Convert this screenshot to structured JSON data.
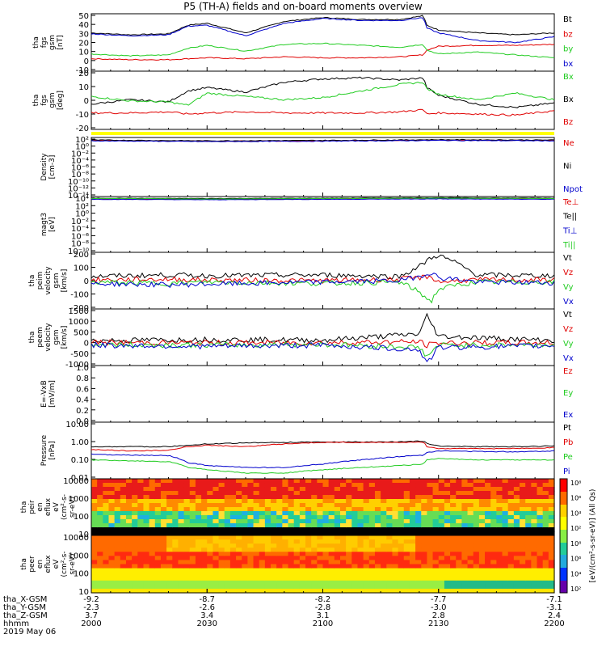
{
  "title": "P5 (TH-A) fields and on-board moments overview",
  "colors": {
    "black": "#000000",
    "red": "#e00000",
    "green": "#22cc22",
    "blue": "#0000cc",
    "yellow": "#ffff00"
  },
  "chart_data": [
    {
      "type": "line",
      "ylabel": [
        "tha",
        "fgs",
        "gsm",
        "[nT]"
      ],
      "yticks": [
        "50",
        "40",
        "30",
        "20",
        "10",
        "0",
        "-10"
      ],
      "ylim": [
        -10,
        50
      ],
      "legend": [
        {
          "name": "Bt",
          "color": "black"
        },
        {
          "name": "bz",
          "color": "red"
        },
        {
          "name": "by",
          "color": "green"
        },
        {
          "name": "bx",
          "color": "blue"
        }
      ],
      "x": [
        2000,
        2010,
        2020,
        2025,
        2030,
        2040,
        2050,
        2100,
        2110,
        2120,
        2126,
        2127,
        2130,
        2140,
        2150,
        2200
      ],
      "series": [
        {
          "name": "Bt",
          "color": "black",
          "values": [
            30,
            28,
            29,
            38,
            40,
            30,
            42,
            46,
            44,
            44,
            48,
            38,
            33,
            30,
            28,
            30
          ]
        },
        {
          "name": "bz",
          "color": "red",
          "values": [
            3,
            2,
            2,
            3,
            4,
            3,
            5,
            4,
            4,
            5,
            7,
            12,
            16,
            17,
            17,
            18
          ]
        },
        {
          "name": "by",
          "color": "green",
          "values": [
            8,
            6,
            7,
            14,
            17,
            11,
            18,
            19,
            17,
            15,
            18,
            12,
            8,
            10,
            7,
            4
          ]
        },
        {
          "name": "bx",
          "color": "blue",
          "values": [
            29,
            27,
            28,
            37,
            38,
            27,
            40,
            45,
            43,
            43,
            46,
            35,
            30,
            22,
            20,
            26
          ]
        }
      ]
    },
    {
      "type": "line",
      "ylabel": [
        "tha",
        "fgs",
        "gsm",
        "[deg]"
      ],
      "yticks": [
        "20",
        "10",
        "0",
        "-10",
        "-20"
      ],
      "ylim": [
        -25,
        28
      ],
      "legend": [
        {
          "name": "Bx",
          "color": "green"
        },
        {
          "name": "Bx",
          "color": "black"
        },
        {
          "name": "Bz",
          "color": "red"
        }
      ],
      "x": [
        2000,
        2010,
        2020,
        2025,
        2030,
        2040,
        2050,
        2100,
        2110,
        2120,
        2126,
        2127,
        2130,
        2140,
        2150,
        2200
      ],
      "series": [
        {
          "name": "Bx",
          "color": "black",
          "values": [
            -2,
            2,
            0,
            10,
            13,
            9,
            18,
            21,
            22,
            20,
            22,
            13,
            6,
            -2,
            -5,
            -1
          ]
        },
        {
          "name": "Bx",
          "color": "green",
          "values": [
            5,
            1,
            0,
            -3,
            8,
            5,
            2,
            4,
            10,
            16,
            18,
            12,
            7,
            2,
            8,
            2
          ]
        },
        {
          "name": "Bz",
          "color": "red",
          "values": [
            -10,
            -10,
            -9,
            -11,
            -10,
            -9,
            -10,
            -10,
            -10,
            -9,
            -7,
            -11,
            -10,
            -11,
            -12,
            -8
          ]
        }
      ]
    },
    {
      "type": "line",
      "ylabel": [
        "Density",
        "[cm-3]"
      ],
      "yticks": [
        "10²",
        "10⁰",
        "10⁻²",
        "10⁻⁴",
        "10⁻⁶",
        "10⁻⁸",
        "10⁻¹⁰",
        "10⁻¹²",
        "10⁻¹⁴"
      ],
      "ylim": [
        -14,
        2
      ],
      "legend": [
        {
          "name": "Ne",
          "color": "red"
        },
        {
          "name": "Ni",
          "color": "black"
        },
        {
          "name": "Npot",
          "color": "blue"
        }
      ],
      "x": [
        2000,
        2030,
        2100,
        2130,
        2200
      ],
      "series": [
        {
          "name": "Ne",
          "color": "red",
          "values": [
            1.2,
            1.0,
            1.1,
            1.3,
            1.2
          ]
        },
        {
          "name": "Ni",
          "color": "black",
          "values": [
            1.3,
            1.1,
            1.2,
            1.4,
            1.3
          ]
        },
        {
          "name": "Npot",
          "color": "blue",
          "values": [
            1.1,
            0.9,
            1.0,
            1.2,
            1.1
          ]
        }
      ]
    },
    {
      "type": "line",
      "ylabel": [
        "magt3",
        "[eV]"
      ],
      "yticks": [
        "10⁴",
        "10²",
        "10⁰",
        "10⁻²",
        "10⁻⁴",
        "10⁻⁶",
        "10⁻⁸",
        "10⁻¹⁰"
      ],
      "ylim": [
        -10,
        4
      ],
      "legend": [
        {
          "name": "Te⊥",
          "color": "red"
        },
        {
          "name": "Te||",
          "color": "black"
        },
        {
          "name": "Ti⊥",
          "color": "blue"
        },
        {
          "name": "Ti||",
          "color": "green"
        }
      ],
      "x": [
        2000,
        2030,
        2100,
        2130,
        2200
      ],
      "series": [
        {
          "name": "Te⊥",
          "color": "red",
          "values": [
            3.4,
            3.3,
            3.4,
            3.5,
            3.4
          ]
        },
        {
          "name": "Te||",
          "color": "black",
          "values": [
            3.6,
            3.5,
            3.6,
            3.7,
            3.6
          ]
        },
        {
          "name": "Ti⊥",
          "color": "blue",
          "values": [
            3.3,
            3.2,
            3.3,
            3.4,
            3.3
          ]
        },
        {
          "name": "Ti||",
          "color": "green",
          "values": [
            3.5,
            3.4,
            3.5,
            3.6,
            3.5
          ]
        }
      ]
    },
    {
      "type": "line",
      "ylabel": [
        "tha",
        "peim",
        "velocity",
        "gsm",
        "[km/s]"
      ],
      "yticks": [
        "200",
        "100",
        "0",
        "-100",
        "-200"
      ],
      "ylim": [
        -200,
        200
      ],
      "legend": [
        {
          "name": "Vt",
          "color": "black"
        },
        {
          "name": "Vz",
          "color": "red"
        },
        {
          "name": "Vy",
          "color": "green"
        },
        {
          "name": "Vx",
          "color": "blue"
        }
      ],
      "x": [
        2000,
        2020,
        2030,
        2100,
        2120,
        2125,
        2128,
        2130,
        2135,
        2140,
        2200
      ],
      "series": [
        {
          "name": "Vt",
          "color": "black",
          "values": [
            30,
            40,
            35,
            40,
            30,
            100,
            160,
            180,
            120,
            40,
            35
          ]
        },
        {
          "name": "Vz",
          "color": "red",
          "values": [
            5,
            10,
            5,
            0,
            10,
            20,
            30,
            -10,
            0,
            5,
            5
          ]
        },
        {
          "name": "Vy",
          "color": "green",
          "values": [
            -10,
            -20,
            -10,
            -20,
            -10,
            -80,
            -150,
            -60,
            -30,
            -10,
            -10
          ]
        },
        {
          "name": "Vx",
          "color": "blue",
          "values": [
            -20,
            -30,
            -25,
            -10,
            0,
            30,
            60,
            20,
            10,
            -10,
            -15
          ]
        }
      ]
    },
    {
      "type": "line",
      "ylabel": [
        "tha",
        "peem",
        "velocity",
        "gsm",
        "[km/s]"
      ],
      "yticks": [
        "1500",
        "1000",
        "500",
        "0",
        "-500",
        "-1000"
      ],
      "ylim": [
        -1000,
        1500
      ],
      "legend": [
        {
          "name": "Vt",
          "color": "black"
        },
        {
          "name": "Vz",
          "color": "red"
        },
        {
          "name": "Vy",
          "color": "green"
        },
        {
          "name": "Vx",
          "color": "blue"
        }
      ],
      "x": [
        2000,
        2030,
        2100,
        2125,
        2127,
        2130,
        2200
      ],
      "series": [
        {
          "name": "Vt",
          "color": "black",
          "values": [
            100,
            150,
            120,
            400,
            1200,
            300,
            100
          ]
        },
        {
          "name": "Vz",
          "color": "red",
          "values": [
            20,
            0,
            10,
            50,
            -100,
            0,
            10
          ]
        },
        {
          "name": "Vy",
          "color": "green",
          "values": [
            -80,
            -100,
            -60,
            -200,
            -600,
            -100,
            -80
          ]
        },
        {
          "name": "Vx",
          "color": "blue",
          "values": [
            -100,
            -150,
            -100,
            -300,
            -900,
            -200,
            -120
          ]
        }
      ]
    },
    {
      "type": "line",
      "ylabel": [
        "E=-VxB",
        "[mV/m]"
      ],
      "yticks": [
        "1.0",
        "0.8",
        "0.6",
        "0.4",
        "0.2",
        "0.0"
      ],
      "ylim": [
        0,
        1
      ],
      "legend": [
        {
          "name": "Ez",
          "color": "red"
        },
        {
          "name": "Ey",
          "color": "green"
        },
        {
          "name": "Ex",
          "color": "blue"
        }
      ],
      "x": [],
      "series": []
    },
    {
      "type": "line",
      "log": true,
      "ylabel": [
        "Pressure",
        "[nPa]"
      ],
      "yticks": [
        "10.00",
        "1.00",
        "0.10",
        "0.01"
      ],
      "ylim": [
        -2,
        1
      ],
      "legend": [
        {
          "name": "Pt",
          "color": "black"
        },
        {
          "name": "Pb",
          "color": "red"
        },
        {
          "name": "Pe",
          "color": "green"
        },
        {
          "name": "Pi",
          "color": "blue"
        }
      ],
      "x": [
        2000,
        2010,
        2020,
        2025,
        2030,
        2040,
        2050,
        2100,
        2110,
        2120,
        2126,
        2127,
        2130,
        2140,
        2150,
        2200
      ],
      "series": [
        {
          "name": "Pt",
          "color": "black",
          "values": [
            0.5,
            0.5,
            0.5,
            0.6,
            0.7,
            0.8,
            0.85,
            0.9,
            0.9,
            0.9,
            1.0,
            0.75,
            0.55,
            0.5,
            0.5,
            0.55
          ]
        },
        {
          "name": "Pb",
          "color": "red",
          "values": [
            0.35,
            0.3,
            0.32,
            0.5,
            0.6,
            0.5,
            0.7,
            0.85,
            0.85,
            0.85,
            0.9,
            0.5,
            0.4,
            0.4,
            0.4,
            0.45
          ]
        },
        {
          "name": "Pe",
          "color": "green",
          "values": [
            0.1,
            0.09,
            0.08,
            0.04,
            0.03,
            0.02,
            0.02,
            0.03,
            0.04,
            0.05,
            0.06,
            0.1,
            0.12,
            0.1,
            0.1,
            0.1
          ]
        },
        {
          "name": "Pi",
          "color": "blue",
          "values": [
            0.2,
            0.18,
            0.17,
            0.07,
            0.05,
            0.04,
            0.04,
            0.06,
            0.1,
            0.15,
            0.18,
            0.25,
            0.3,
            0.28,
            0.27,
            0.3
          ]
        }
      ]
    },
    {
      "type": "heatmap",
      "ylabel": [
        "tha",
        "peir",
        "en",
        "eflux",
        "eV",
        "(cm²-s-",
        "sr-eV)"
      ],
      "yticks": [
        "10000",
        "1000",
        "100",
        "10"
      ],
      "colorbar_ticks": [
        "10⁸",
        "10⁶",
        "10⁴",
        "10²",
        "10⁸",
        "10⁶",
        "10⁴",
        "10²"
      ],
      "colorbar_label": "[eV/(cm²-s-sr-eV)] (All Qs)"
    },
    {
      "type": "heatmap",
      "ylabel": [
        "tha",
        "peer",
        "en",
        "eflux",
        "eV",
        "(cm²-s-",
        "sr-eV)"
      ],
      "yticks": [
        "10000",
        "1000",
        "100",
        "10"
      ]
    }
  ],
  "x_axis": {
    "row_labels": [
      "tha_X-GSM",
      "tha_Y-GSM",
      "tha_Z-GSM",
      "hhmm",
      "2019 May 06"
    ],
    "columns": [
      {
        "x": 2000,
        "vals": [
          "-9.2",
          "-2.3",
          "3.7",
          "2000"
        ]
      },
      {
        "x": 2030,
        "vals": [
          "-8.7",
          "-2.6",
          "3.4",
          "2030"
        ]
      },
      {
        "x": 2100,
        "vals": [
          "-8.2",
          "-2.8",
          "3.1",
          "2100"
        ]
      },
      {
        "x": 2130,
        "vals": [
          "-7.7",
          "-3.0",
          "2.8",
          "2130"
        ]
      },
      {
        "x": 2200,
        "vals": [
          "-7.1",
          "-3.1",
          "2.4",
          "2200"
        ]
      }
    ]
  }
}
